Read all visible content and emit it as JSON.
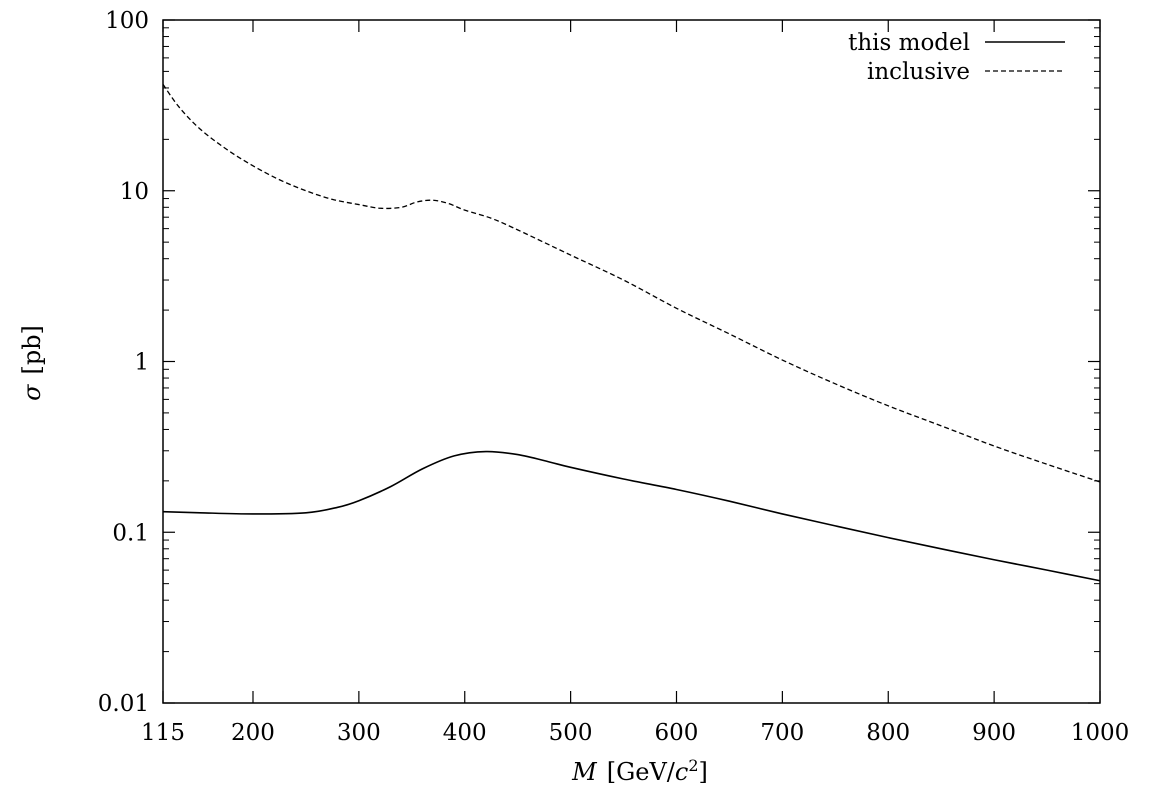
{
  "chart_data": {
    "type": "line",
    "title": "",
    "xlabel": {
      "var": "M",
      "open": "[GeV/",
      "c": "c",
      "sup": "2",
      "close": "]"
    },
    "ylabel": {
      "var": "σ",
      "unit": "[pb]"
    },
    "xlim": [
      115,
      1000
    ],
    "ylim": [
      0.01,
      100
    ],
    "yscale": "log",
    "xticks": [
      115,
      200,
      300,
      400,
      500,
      600,
      700,
      800,
      900,
      1000
    ],
    "xtick_labels": [
      "115",
      "200",
      "300",
      "400",
      "500",
      "600",
      "700",
      "800",
      "900",
      "1000"
    ],
    "yticks": [
      0.01,
      0.1,
      1,
      10,
      100
    ],
    "ytick_labels": [
      "0.01",
      "0.1",
      "1",
      "10",
      "100"
    ],
    "grid": false,
    "legend_position": "top-right",
    "series": [
      {
        "name": "this model",
        "style": "solid",
        "x": [
          115,
          150,
          200,
          250,
          280,
          300,
          330,
          360,
          390,
          420,
          450,
          480,
          500,
          550,
          600,
          650,
          700,
          750,
          800,
          850,
          900,
          950,
          1000
        ],
        "y": [
          0.132,
          0.13,
          0.128,
          0.13,
          0.14,
          0.153,
          0.185,
          0.235,
          0.28,
          0.297,
          0.285,
          0.258,
          0.24,
          0.205,
          0.178,
          0.152,
          0.128,
          0.109,
          0.093,
          0.08,
          0.069,
          0.06,
          0.052
        ]
      },
      {
        "name": "inclusive",
        "style": "dashed",
        "x": [
          115,
          130,
          150,
          175,
          200,
          225,
          250,
          275,
          300,
          320,
          340,
          355,
          370,
          385,
          400,
          425,
          450,
          500,
          550,
          600,
          650,
          700,
          750,
          800,
          850,
          900,
          950,
          1000
        ],
        "y": [
          42,
          31,
          23,
          17.5,
          14,
          11.6,
          10,
          8.9,
          8.3,
          7.9,
          8.0,
          8.6,
          8.8,
          8.4,
          7.7,
          6.9,
          5.9,
          4.2,
          3.0,
          2.05,
          1.45,
          1.02,
          0.74,
          0.55,
          0.42,
          0.32,
          0.25,
          0.197
        ]
      }
    ]
  }
}
